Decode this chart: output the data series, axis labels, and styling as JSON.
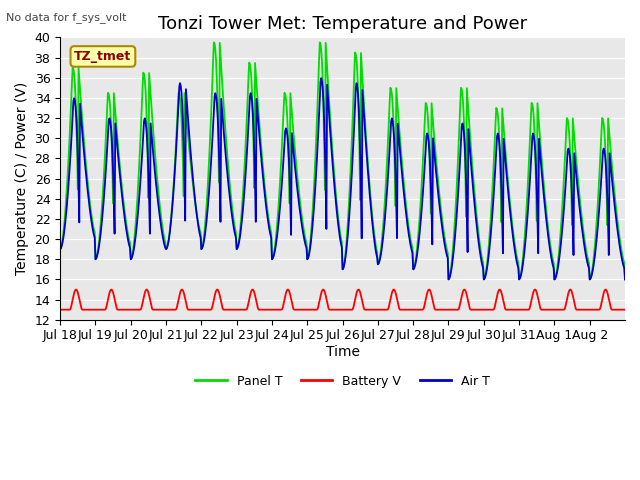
{
  "title": "Tonzi Tower Met: Temperature and Power",
  "top_left_text": "No data for f_sys_volt",
  "legend_label": "TZ_tmet",
  "ylabel": "Temperature (C) / Power (V)",
  "xlabel": "Time",
  "ylim": [
    12,
    40
  ],
  "yticks": [
    12,
    14,
    16,
    18,
    20,
    22,
    24,
    26,
    28,
    30,
    32,
    34,
    36,
    38,
    40
  ],
  "background_color": "#e8e8e8",
  "panel_t_color": "#00dd00",
  "battery_v_color": "#ff0000",
  "air_t_color": "#0000cc",
  "title_fontsize": 13,
  "axis_fontsize": 10,
  "tick_fontsize": 9,
  "n_days": 16,
  "panel_peaks": [
    37.0,
    34.5,
    36.5,
    34.5,
    39.5,
    37.5,
    34.5,
    39.5,
    38.5,
    35.0,
    33.5,
    35.0,
    33.0,
    33.5,
    32.0,
    32.0
  ],
  "air_peaks": [
    34.0,
    32.0,
    32.0,
    35.5,
    34.5,
    34.5,
    31.0,
    36.0,
    35.5,
    32.0,
    30.5,
    31.5,
    30.5,
    30.5,
    29.0,
    29.0
  ],
  "night_mins": [
    19.0,
    18.0,
    18.0,
    19.0,
    19.0,
    19.0,
    18.0,
    18.0,
    17.0,
    17.5,
    17.0,
    16.0,
    16.0,
    16.0,
    16.0,
    16.0
  ],
  "tick_labels": [
    "Jul 18",
    "Jul 19",
    "Jul 20",
    "Jul 21",
    "Jul 22",
    "Jul 23",
    "Jul 24",
    "Jul 25",
    "Jul 26",
    "Jul 27",
    "Jul 28",
    "Jul 29",
    "Jul 30",
    "Jul 31",
    "Aug 1",
    "Aug 2"
  ],
  "tick_positions": [
    0,
    24,
    48,
    72,
    96,
    120,
    144,
    168,
    192,
    216,
    240,
    264,
    288,
    312,
    336,
    360
  ]
}
